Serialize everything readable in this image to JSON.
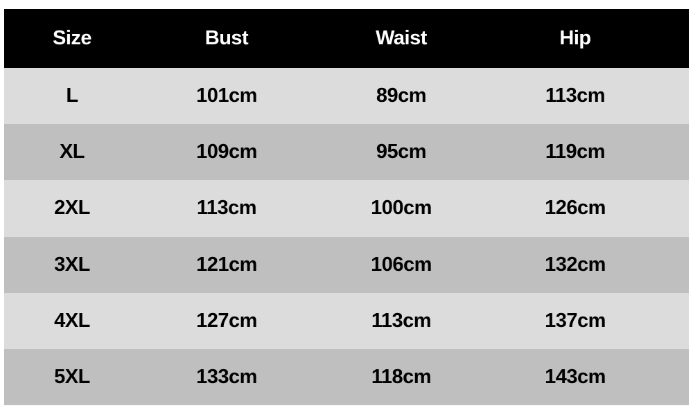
{
  "headers": [
    "Size",
    "Bust",
    "Waist",
    "Hip"
  ],
  "rows": [
    [
      "L",
      "101cm",
      "89cm",
      "113cm"
    ],
    [
      "XL",
      "109cm",
      "95cm",
      "119cm"
    ],
    [
      "2XL",
      "113cm",
      "100cm",
      "126cm"
    ],
    [
      "3XL",
      "121cm",
      "106cm",
      "132cm"
    ],
    [
      "4XL",
      "127cm",
      "113cm",
      "137cm"
    ],
    [
      "5XL",
      "133cm",
      "118cm",
      "143cm"
    ]
  ],
  "colors": {
    "header_bg": "#000000",
    "header_text": "#ffffff",
    "row_light": "#dcdcdc",
    "row_dark": "#bfbfbf"
  }
}
